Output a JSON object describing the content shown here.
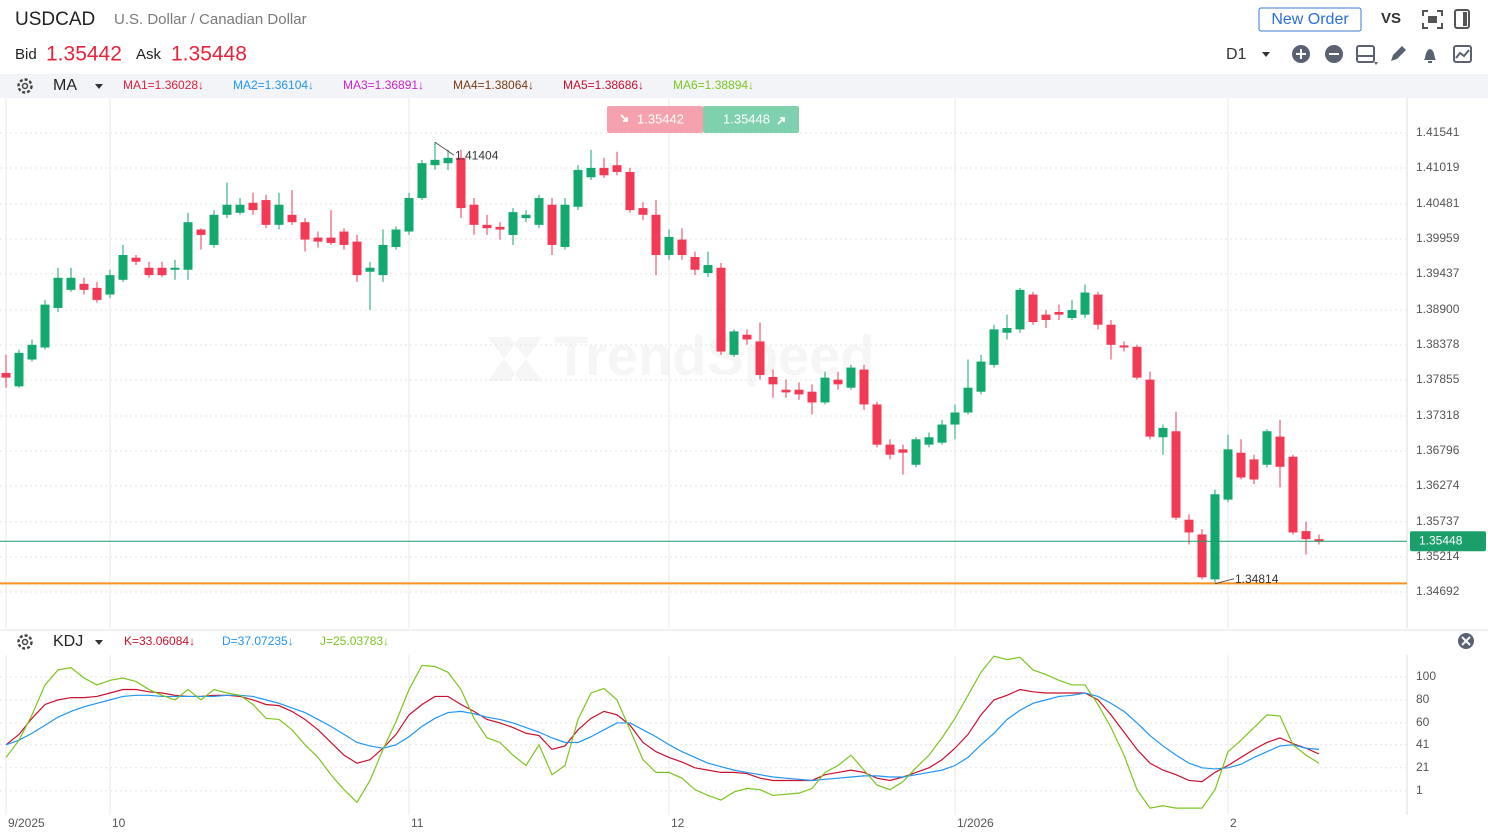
{
  "header": {
    "symbol": "USDCAD",
    "name": "U.S. Dollar / Canadian Dollar",
    "new_order": "New Order",
    "vs": "VS",
    "bid_label": "Bid",
    "bid": 1.35442,
    "ask_label": "Ask",
    "ask": 1.35448,
    "timeframe": "D1"
  },
  "indicator_bar": {
    "name": "MA",
    "items": [
      {
        "label": "MA1=1.36028↓",
        "color": "#e0203a"
      },
      {
        "label": "MA2=1.36104↓",
        "color": "#2196f3"
      },
      {
        "label": "MA3=1.36891↓",
        "color": "#cc22cc"
      },
      {
        "label": "MA4=1.38064↓",
        "color": "#7a3b12"
      },
      {
        "label": "MA5=1.38686↓",
        "color": "#c8102e"
      },
      {
        "label": "MA6=1.38894↓",
        "color": "#7cc520"
      }
    ]
  },
  "chart_data": [
    {
      "type": "candlestick",
      "watermark": "TrendSpeed",
      "up_color": "#13a86e",
      "down_color": "#f23a55",
      "grid": true,
      "categories": [
        "9/2025",
        null,
        null,
        null,
        null,
        null,
        null,
        null,
        "10",
        null,
        null,
        null,
        null,
        null,
        null,
        null,
        null,
        null,
        null,
        null,
        null,
        null,
        null,
        null,
        null,
        null,
        null,
        null,
        null,
        null,
        null,
        "11",
        null,
        null,
        null,
        null,
        null,
        null,
        null,
        null,
        null,
        null,
        null,
        null,
        null,
        null,
        null,
        null,
        null,
        null,
        null,
        "12",
        null,
        null,
        null,
        null,
        null,
        null,
        null,
        null,
        null,
        null,
        null,
        null,
        null,
        null,
        null,
        null,
        null,
        null,
        null,
        null,
        null,
        "1/2026",
        null,
        null,
        null,
        null,
        null,
        null,
        null,
        null,
        null,
        null,
        null,
        null,
        null,
        null,
        null,
        null,
        null,
        null,
        null,
        null,
        "2",
        null,
        null,
        null,
        null,
        null,
        null,
        null
      ],
      "open": [
        1.3796,
        1.3776,
        1.3816,
        1.3834,
        1.3893,
        1.392,
        1.3929,
        1.3923,
        1.3913,
        1.3935,
        1.3968,
        1.3953,
        1.3953,
        1.395,
        1.395,
        1.401,
        1.3987,
        1.4032,
        1.4035,
        1.405,
        1.4054,
        1.4017,
        1.4032,
        1.4021,
        1.3998,
        1.3998,
        1.4007,
        1.3992,
        1.3947,
        1.3942,
        1.3984,
        1.4007,
        1.4057,
        1.4106,
        1.4109,
        1.4117,
        1.4047,
        1.4017,
        1.4014,
        1.4002,
        1.4027,
        1.4017,
        1.4047,
        1.3984,
        1.4044,
        1.4088,
        1.4102,
        1.4106,
        1.4096,
        1.4042,
        1.4032,
        1.3972,
        1.3995,
        1.3969,
        1.3945,
        1.3953,
        1.3823,
        1.3853,
        1.3843,
        1.379,
        1.3771,
        1.3771,
        1.3768,
        1.3752,
        1.3786,
        1.3774,
        1.3801,
        1.3749,
        1.3689,
        1.3682,
        1.3659,
        1.3689,
        1.3692,
        1.3719,
        1.3737,
        1.3768,
        1.3808,
        1.3856,
        1.3861,
        1.3913,
        1.3883,
        1.3887,
        1.3878,
        1.3883,
        1.3913,
        1.3868,
        1.3837,
        1.3835,
        1.3786,
        1.37,
        1.3709,
        1.3577,
        1.3555,
        1.3488,
        1.3607,
        1.3677,
        1.3667,
        1.3659,
        1.3701,
        1.3671,
        1.356,
        1.3548
      ],
      "high": [
        1.3823,
        1.3831,
        1.3846,
        1.3905,
        1.3953,
        1.3953,
        1.3938,
        1.3932,
        1.395,
        1.3987,
        1.3972,
        1.3962,
        1.3962,
        1.3965,
        1.4035,
        1.4012,
        1.4039,
        1.408,
        1.4057,
        1.4065,
        1.4062,
        1.4065,
        1.4069,
        1.4027,
        1.4007,
        1.4039,
        1.4012,
        1.4002,
        1.3962,
        1.401,
        1.4015,
        1.4065,
        1.4114,
        1.41404,
        1.4129,
        1.4129,
        1.4057,
        1.4032,
        1.4021,
        1.4042,
        1.4039,
        1.4062,
        1.4057,
        1.4057,
        1.4106,
        1.4129,
        1.4117,
        1.4126,
        1.4102,
        1.4051,
        1.4054,
        1.401,
        1.4012,
        1.3977,
        1.3977,
        1.396,
        1.3861,
        1.3861,
        1.3871,
        1.3801,
        1.3786,
        1.3782,
        1.3779,
        1.3798,
        1.3798,
        1.3808,
        1.3808,
        1.3753,
        1.3697,
        1.3689,
        1.37,
        1.3707,
        1.3726,
        1.3749,
        1.3816,
        1.3823,
        1.3868,
        1.3883,
        1.3923,
        1.3917,
        1.389,
        1.3898,
        1.3905,
        1.3928,
        1.3917,
        1.3875,
        1.3843,
        1.3838,
        1.3798,
        1.3719,
        1.3738,
        1.3585,
        1.3563,
        1.3622,
        1.3704,
        1.3697,
        1.3674,
        1.3712,
        1.3726,
        1.3674,
        1.3574,
        1.3555
      ],
      "low": [
        1.3774,
        1.3774,
        1.3813,
        1.3831,
        1.3887,
        1.3917,
        1.3913,
        1.3901,
        1.3908,
        1.3932,
        1.3957,
        1.3938,
        1.3939,
        1.3935,
        1.3935,
        1.398,
        1.3983,
        1.4027,
        1.4032,
        1.4032,
        1.4012,
        1.401,
        1.4017,
        1.3977,
        1.3983,
        1.3987,
        1.398,
        1.3932,
        1.389,
        1.3932,
        1.398,
        1.4002,
        1.4054,
        1.4099,
        1.4099,
        1.4027,
        1.4002,
        1.4002,
        1.3995,
        1.3987,
        1.4021,
        1.4012,
        1.3972,
        1.398,
        1.4039,
        1.4084,
        1.4087,
        1.4091,
        1.4035,
        1.4024,
        1.3942,
        1.3965,
        1.3965,
        1.3942,
        1.3939,
        1.3823,
        1.382,
        1.3838,
        1.3786,
        1.3759,
        1.3759,
        1.3756,
        1.3734,
        1.3749,
        1.3771,
        1.3771,
        1.3741,
        1.3685,
        1.3667,
        1.3644,
        1.3655,
        1.3685,
        1.3689,
        1.3697,
        1.3734,
        1.3764,
        1.3804,
        1.3846,
        1.3856,
        1.3868,
        1.3863,
        1.3875,
        1.3875,
        1.3878,
        1.3861,
        1.3816,
        1.3828,
        1.3786,
        1.3697,
        1.3674,
        1.3577,
        1.354,
        1.3488,
        1.34814,
        1.3603,
        1.3637,
        1.363,
        1.3655,
        1.3625,
        1.3555,
        1.3525,
        1.354
      ],
      "close": [
        1.3789,
        1.3826,
        1.3838,
        1.3898,
        1.3938,
        1.3938,
        1.392,
        1.3905,
        1.3942,
        1.3972,
        1.3962,
        1.3942,
        1.3942,
        1.3953,
        1.4021,
        1.4002,
        1.4032,
        1.4047,
        1.4047,
        1.4039,
        1.4017,
        1.4047,
        1.4021,
        1.3995,
        1.3992,
        1.399,
        1.3987,
        1.3942,
        1.3953,
        1.3987,
        1.401,
        1.4057,
        1.4109,
        1.4114,
        1.4117,
        1.4042,
        1.4017,
        1.4012,
        1.401,
        1.4036,
        1.4032,
        1.4057,
        1.3987,
        1.4047,
        1.4099,
        1.4102,
        1.4091,
        1.4096,
        1.4039,
        1.4032,
        1.3972,
        1.3999,
        1.3972,
        1.395,
        1.3957,
        1.3828,
        1.3858,
        1.3846,
        1.3793,
        1.3779,
        1.3767,
        1.3764,
        1.3752,
        1.3789,
        1.3779,
        1.3804,
        1.3749,
        1.3689,
        1.3674,
        1.3677,
        1.3697,
        1.37,
        1.3719,
        1.3737,
        1.3774,
        1.3813,
        1.3861,
        1.3863,
        1.392,
        1.3872,
        1.3875,
        1.3883,
        1.389,
        1.3916,
        1.3868,
        1.3838,
        1.3834,
        1.3789,
        1.3701,
        1.3714,
        1.358,
        1.3558,
        1.3491,
        1.3615,
        1.3682,
        1.364,
        1.3637,
        1.3709,
        1.3656,
        1.3558,
        1.3548,
        1.35442
      ],
      "ylim": [
        1.34154,
        1.42063
      ],
      "yticks": [
        1.41541,
        1.41019,
        1.40481,
        1.39959,
        1.39437,
        {
          "value": 1.389,
          "label": "1.38900"
        },
        1.38378,
        1.37855,
        1.37318,
        1.36796,
        1.36274,
        1.35737,
        1.35214,
        1.34692
      ],
      "max_label": 1.41404,
      "max_index": 33,
      "min_label": 1.34814,
      "min_index": 93,
      "current_line": {
        "value": 1.35448,
        "color": "#1a9e6a"
      },
      "level_line": {
        "value": 1.3482,
        "color": "#f7931e"
      },
      "quote": {
        "bid": 1.35442,
        "ask": 1.35448
      }
    },
    {
      "type": "line",
      "title": "KDJ",
      "ylim": [
        -20,
        119
      ],
      "yticks": [
        100,
        80,
        60,
        41,
        21,
        1
      ],
      "grid": true,
      "series": [
        {
          "name": "K=33.06084↓",
          "color": "#c8102e",
          "values": [
            41,
            50,
            64,
            76,
            80,
            82,
            82,
            83,
            86,
            89,
            89,
            87,
            86,
            84,
            83,
            83,
            84,
            84,
            83,
            80,
            76,
            75,
            70,
            63,
            54,
            43,
            32,
            25,
            28,
            38,
            50,
            67,
            76,
            83,
            83,
            76,
            70,
            63,
            60,
            56,
            51,
            49,
            37,
            40,
            54,
            64,
            70,
            67,
            58,
            43,
            35,
            30,
            26,
            21,
            19,
            17,
            17,
            16,
            12,
            10,
            10,
            10,
            10,
            15,
            17,
            19,
            17,
            12,
            10,
            13,
            17,
            21,
            28,
            38,
            50,
            67,
            80,
            84,
            89,
            87,
            86,
            86,
            86,
            86,
            80,
            67,
            52,
            37,
            25,
            19,
            15,
            10,
            9,
            17,
            23,
            30,
            37,
            43,
            47,
            42,
            38,
            33
          ]
        },
        {
          "name": "D=37.07235↓",
          "color": "#2196f3",
          "values": [
            41,
            45,
            51,
            58,
            65,
            70,
            74,
            77,
            80,
            83,
            84,
            84,
            83,
            83,
            83,
            83,
            83,
            84,
            84,
            83,
            80,
            77,
            73,
            69,
            63,
            57,
            50,
            43,
            40,
            38,
            41,
            48,
            57,
            64,
            69,
            70,
            68,
            65,
            63,
            60,
            56,
            52,
            47,
            43,
            43,
            48,
            54,
            60,
            60,
            54,
            48,
            41,
            35,
            30,
            25,
            22,
            19,
            17,
            15,
            13,
            12,
            11,
            10,
            11,
            12,
            13,
            14,
            14,
            13,
            13,
            15,
            17,
            19,
            23,
            30,
            41,
            51,
            63,
            71,
            77,
            80,
            83,
            84,
            86,
            83,
            77,
            70,
            60,
            49,
            40,
            32,
            25,
            21,
            20,
            21,
            24,
            30,
            35,
            40,
            41,
            38,
            37
          ]
        },
        {
          "name": "J=25.03783↓",
          "color": "#7cc520",
          "values": [
            30,
            45,
            67,
            93,
            106,
            108,
            99,
            93,
            97,
            99,
            96,
            89,
            84,
            80,
            89,
            80,
            89,
            86,
            84,
            76,
            64,
            63,
            54,
            41,
            30,
            15,
            2,
            -9,
            10,
            37,
            61,
            89,
            110,
            109,
            104,
            89,
            64,
            47,
            43,
            32,
            23,
            41,
            15,
            23,
            63,
            86,
            90,
            80,
            54,
            28,
            17,
            17,
            12,
            2,
            -3,
            -7,
            0,
            3,
            2,
            -3,
            -2,
            -1,
            3,
            17,
            23,
            32,
            19,
            6,
            2,
            9,
            21,
            32,
            47,
            64,
            84,
            104,
            118,
            115,
            117,
            106,
            102,
            97,
            93,
            93,
            76,
            56,
            32,
            2,
            -14,
            -12,
            -14,
            -14,
            -14,
            2,
            35,
            45,
            56,
            67,
            66,
            41,
            32,
            25
          ]
        }
      ]
    }
  ]
}
